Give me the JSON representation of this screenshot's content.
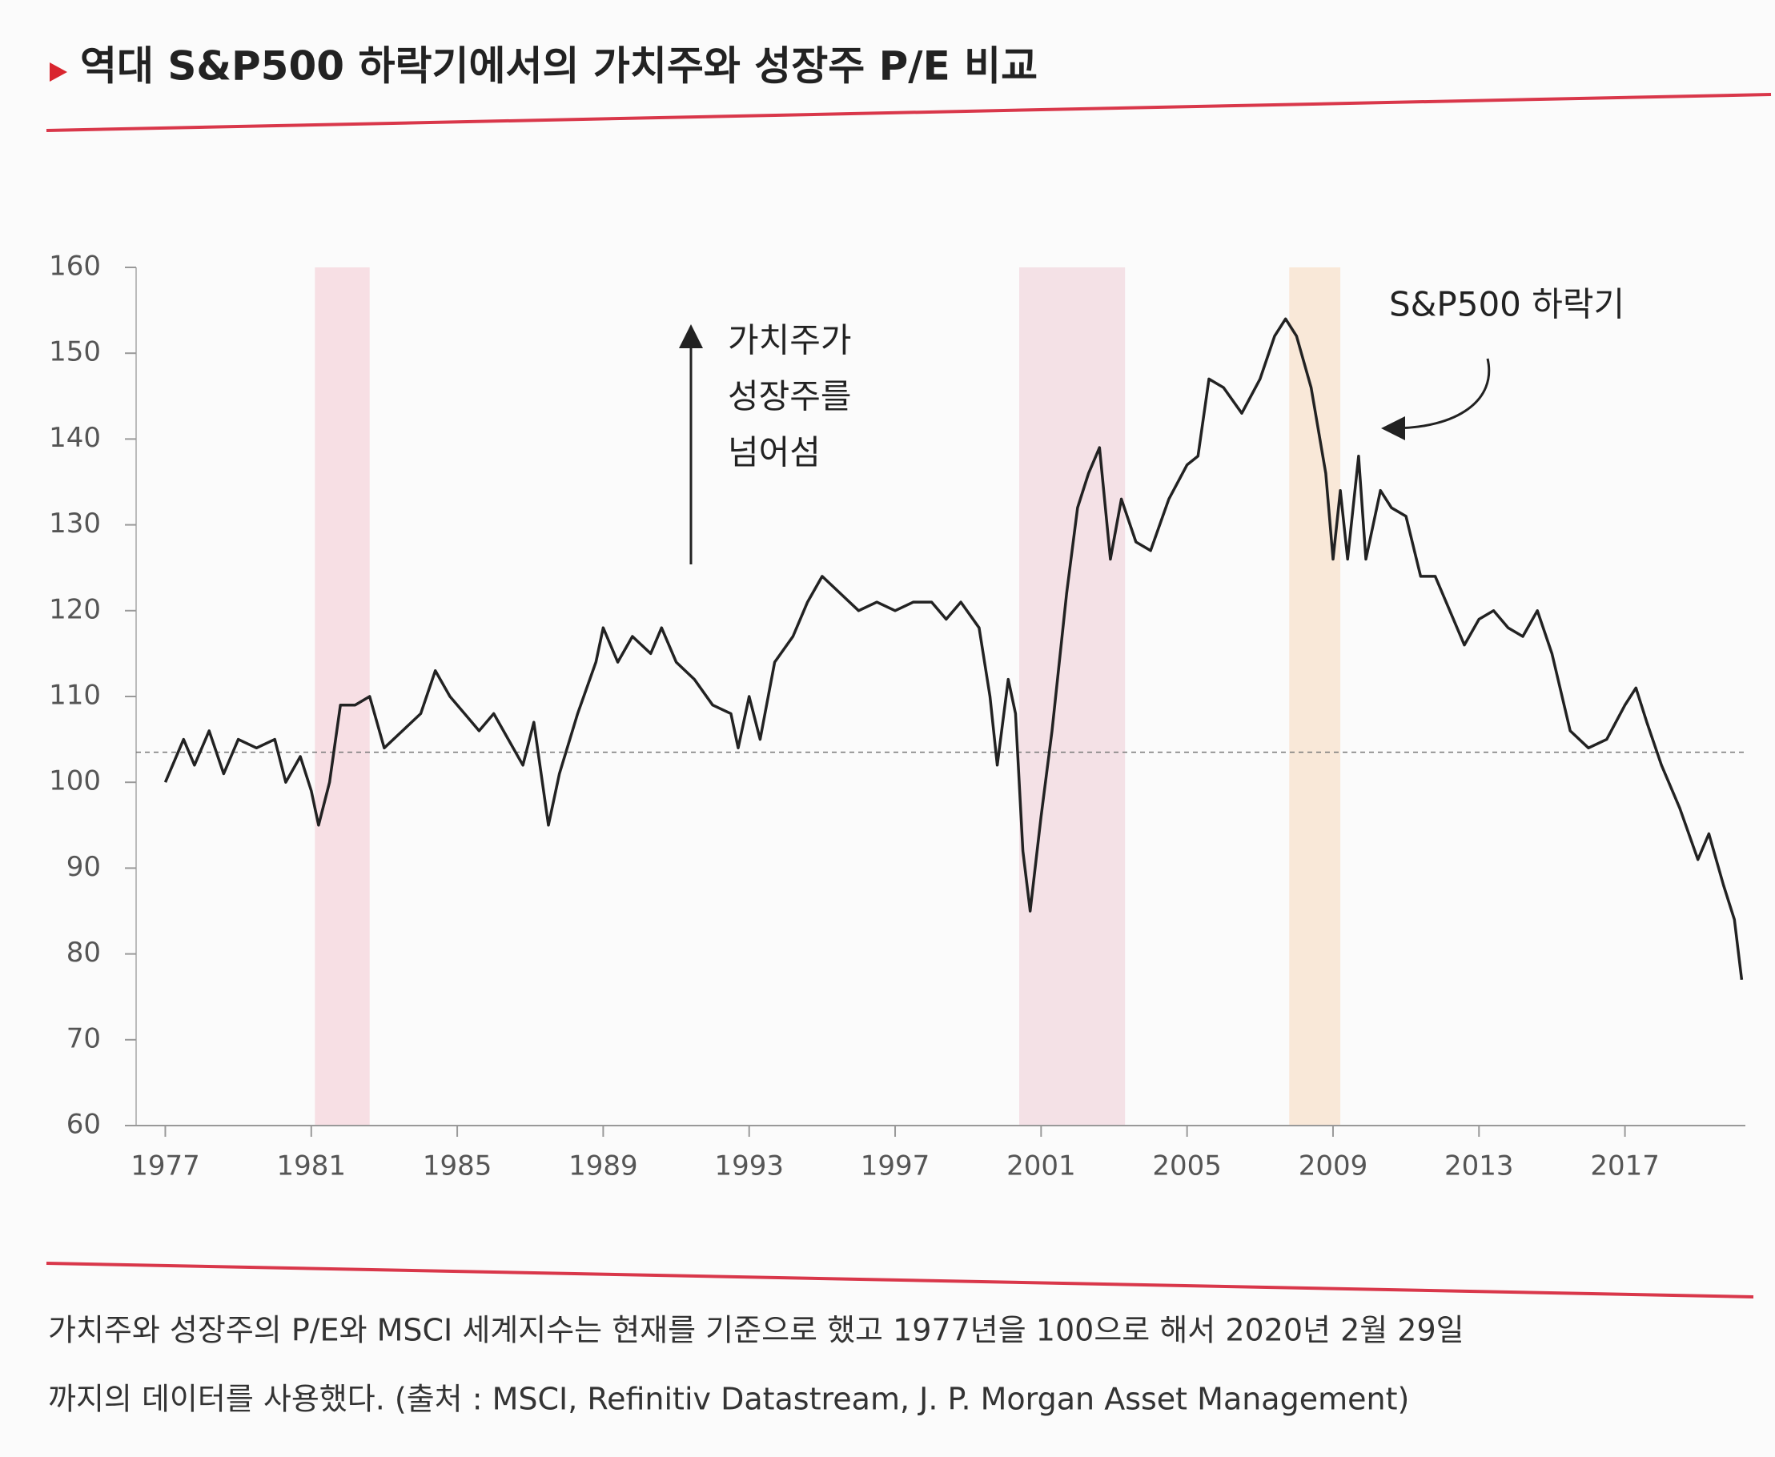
{
  "chart_data": {
    "type": "line",
    "title": "역대 S&P500 하락기에서의 가치주와 성장주 P/E 비교",
    "annotation_lines": [
      "가치주가",
      "성장주를",
      "넘어섬"
    ],
    "shade_label": "S&P500 하락기",
    "footnote_lines": [
      "가치주와 성장주의 P/E와 MSCI 세계지수는 현재를 기준으로 했고 1977년을 100으로 해서 2020년 2월 29일",
      "까지의 데이터를 사용했다. (출처 : MSCI, Refinitiv Datastream, J. P. Morgan Asset Management)"
    ],
    "color": "#222222",
    "x": [
      1977.0,
      1977.5,
      1977.8,
      1978.2,
      1978.6,
      1979.0,
      1979.5,
      1980.0,
      1980.3,
      1980.7,
      1981.0,
      1981.2,
      1981.5,
      1981.8,
      1982.2,
      1982.6,
      1983.0,
      1983.5,
      1984.0,
      1984.4,
      1984.8,
      1985.2,
      1985.6,
      1986.0,
      1986.4,
      1986.8,
      1987.1,
      1987.5,
      1987.8,
      1988.3,
      1988.8,
      1989.0,
      1989.4,
      1989.8,
      1990.3,
      1990.6,
      1991.0,
      1991.5,
      1992.0,
      1992.5,
      1992.7,
      1993.0,
      1993.3,
      1993.7,
      1994.2,
      1994.6,
      1995.0,
      1995.5,
      1996.0,
      1996.5,
      1997.0,
      1997.5,
      1998.0,
      1998.4,
      1998.8,
      1999.3,
      1999.6,
      1999.8,
      2000.1,
      2000.3,
      2000.5,
      2000.7,
      2001.0,
      2001.3,
      2001.7,
      2002.0,
      2002.3,
      2002.6,
      2002.9,
      2003.2,
      2003.6,
      2004.0,
      2004.5,
      2005.0,
      2005.3,
      2005.6,
      2006.0,
      2006.5,
      2007.0,
      2007.4,
      2007.7,
      2008.0,
      2008.4,
      2008.8,
      2009.0,
      2009.2,
      2009.4,
      2009.7,
      2009.9,
      2010.3,
      2010.6,
      2011.0,
      2011.4,
      2011.8,
      2012.2,
      2012.6,
      2013.0,
      2013.4,
      2013.8,
      2014.2,
      2014.6,
      2015.0,
      2015.5,
      2016.0,
      2016.5,
      2017.0,
      2017.3,
      2017.6,
      2018.0,
      2018.5,
      2019.0,
      2019.3,
      2019.7,
      2020.0,
      2020.2
    ],
    "values": [
      100,
      105,
      102,
      106,
      101,
      105,
      104,
      105,
      100,
      103,
      99,
      95,
      100,
      109,
      109,
      110,
      104,
      106,
      108,
      113,
      110,
      108,
      106,
      108,
      105,
      102,
      107,
      95,
      101,
      108,
      114,
      118,
      114,
      117,
      115,
      118,
      114,
      112,
      109,
      108,
      104,
      110,
      105,
      114,
      117,
      121,
      124,
      122,
      120,
      121,
      120,
      121,
      121,
      119,
      121,
      118,
      110,
      102,
      112,
      108,
      92,
      85,
      96,
      106,
      122,
      132,
      136,
      139,
      126,
      133,
      128,
      127,
      133,
      137,
      138,
      147,
      146,
      143,
      147,
      152,
      154,
      152,
      146,
      136,
      126,
      134,
      126,
      138,
      126,
      134,
      132,
      131,
      124,
      124,
      120,
      116,
      119,
      120,
      118,
      117,
      120,
      115,
      106,
      104,
      105,
      109,
      111,
      107,
      102,
      97,
      91,
      94,
      88,
      84,
      77
    ],
    "xlim": [
      1976.2,
      2020.3
    ],
    "xticks": [
      1977,
      1981,
      1985,
      1989,
      1993,
      1997,
      2001,
      2005,
      2009,
      2013,
      2017
    ],
    "ylim": [
      60,
      160
    ],
    "yticks": [
      60,
      70,
      80,
      90,
      100,
      110,
      120,
      130,
      140,
      150,
      160
    ],
    "reference_line": 103.5,
    "shaded_periods": [
      [
        1981.1,
        1982.6
      ],
      [
        2000.4,
        2003.3
      ],
      [
        2007.8,
        2009.2
      ]
    ],
    "shade_colors": [
      "#f7dfe4",
      "#f4e1e6",
      "#f9e8d8"
    ]
  }
}
